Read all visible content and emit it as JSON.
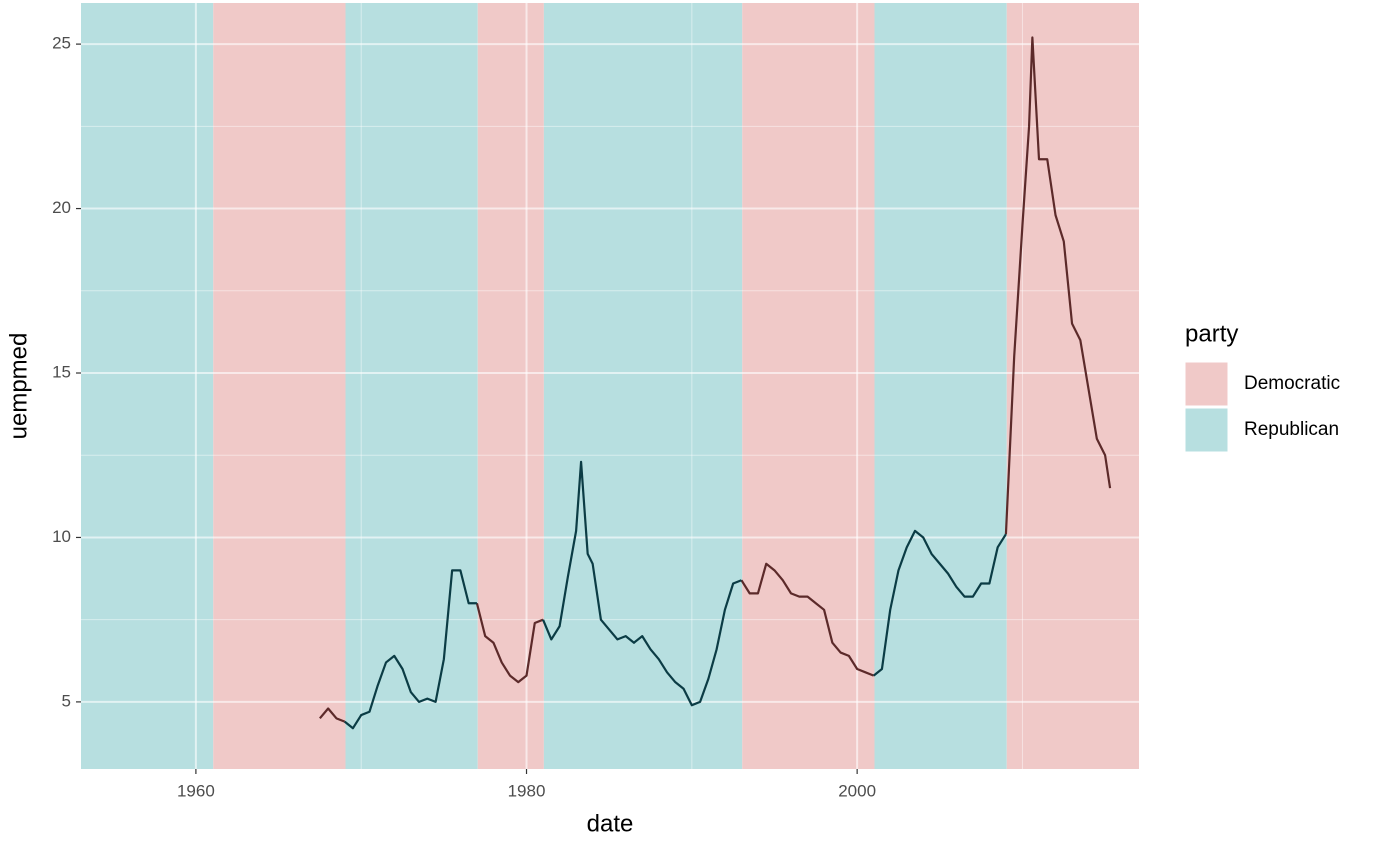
{
  "chart_data": {
    "type": "line",
    "x_label": "date",
    "y_label": "uempmed",
    "legend_title": "party",
    "xlim": [
      1953.05,
      2017.05
    ],
    "ylim": [
      2.96,
      26.25
    ],
    "xticks": [
      1960,
      1980,
      2000
    ],
    "yticks": [
      5,
      10,
      15,
      20,
      25
    ],
    "minor_xticks": [
      1970,
      1990,
      2010
    ],
    "minor_yticks": [
      7.5,
      12.5,
      17.5,
      22.5
    ],
    "grid": true,
    "legend": "right",
    "periods": [
      {
        "start": 1953.05,
        "end": 1961.05,
        "party": "Republican"
      },
      {
        "start": 1961.05,
        "end": 1969.05,
        "party": "Democratic"
      },
      {
        "start": 1969.05,
        "end": 1977.05,
        "party": "Republican"
      },
      {
        "start": 1977.05,
        "end": 1981.05,
        "party": "Democratic"
      },
      {
        "start": 1981.05,
        "end": 1993.05,
        "party": "Republican"
      },
      {
        "start": 1993.05,
        "end": 2001.05,
        "party": "Democratic"
      },
      {
        "start": 2001.05,
        "end": 2009.05,
        "party": "Republican"
      },
      {
        "start": 2009.05,
        "end": 2017.05,
        "party": "Democratic"
      }
    ],
    "x": [
      1967.5,
      1968.0,
      1968.5,
      1969.0,
      1969.5,
      1970.0,
      1970.5,
      1971.0,
      1971.5,
      1972.0,
      1972.5,
      1973.0,
      1973.5,
      1974.0,
      1974.5,
      1975.0,
      1975.5,
      1976.0,
      1976.5,
      1977.0,
      1977.5,
      1978.0,
      1978.5,
      1979.0,
      1979.5,
      1980.0,
      1980.5,
      1981.0,
      1981.5,
      1982.0,
      1982.5,
      1983.0,
      1983.3,
      1983.7,
      1984.0,
      1984.5,
      1985.0,
      1985.5,
      1986.0,
      1986.5,
      1987.0,
      1987.5,
      1988.0,
      1988.5,
      1989.0,
      1989.5,
      1990.0,
      1990.5,
      1991.0,
      1991.5,
      1992.0,
      1992.5,
      1993.0,
      1993.5,
      1994.0,
      1994.5,
      1995.0,
      1995.5,
      1996.0,
      1996.5,
      1997.0,
      1997.5,
      1998.0,
      1998.5,
      1999.0,
      1999.5,
      2000.0,
      2000.5,
      2001.0,
      2001.5,
      2002.0,
      2002.5,
      2003.0,
      2003.5,
      2004.0,
      2004.5,
      2005.0,
      2005.5,
      2006.0,
      2006.5,
      2007.0,
      2007.5,
      2008.0,
      2008.5,
      2009.0,
      2009.5,
      2010.0,
      2010.4,
      2010.6,
      2011.0,
      2011.5,
      2012.0,
      2012.5,
      2013.0,
      2013.5,
      2014.0,
      2014.5,
      2015.0,
      2015.3
    ],
    "series": [
      {
        "name": "Democratic",
        "color": "#f0c9c8",
        "line_color": "#5c2a2a",
        "values": [
          4.5,
          4.8,
          4.5,
          4.4,
          null,
          null,
          null,
          null,
          null,
          null,
          null,
          null,
          null,
          null,
          null,
          null,
          null,
          null,
          null,
          8.0,
          7.0,
          6.8,
          6.2,
          5.8,
          5.6,
          5.8,
          7.4,
          7.5,
          null,
          null,
          null,
          null,
          null,
          null,
          null,
          null,
          null,
          null,
          null,
          null,
          null,
          null,
          null,
          null,
          null,
          null,
          null,
          null,
          null,
          null,
          null,
          null,
          8.7,
          8.3,
          8.3,
          9.2,
          9.0,
          8.7,
          8.3,
          8.2,
          8.2,
          8.0,
          7.8,
          6.8,
          6.5,
          6.4,
          6.0,
          5.9,
          5.8,
          null,
          null,
          null,
          null,
          null,
          null,
          null,
          null,
          null,
          null,
          null,
          null,
          null,
          null,
          null,
          10.1,
          15.5,
          19.5,
          22.5,
          25.2,
          21.5,
          21.5,
          19.8,
          19.0,
          16.5,
          16.0,
          14.5,
          13.0,
          12.5,
          11.5
        ]
      },
      {
        "name": "Republican",
        "color": "#b7dfe0",
        "line_color": "#0b3c45",
        "values": [
          null,
          null,
          null,
          4.4,
          4.2,
          4.6,
          4.7,
          5.5,
          6.2,
          6.4,
          6.0,
          5.3,
          5.0,
          5.1,
          5.0,
          6.3,
          9.0,
          9.0,
          8.0,
          8.0,
          null,
          null,
          null,
          null,
          null,
          null,
          null,
          7.5,
          6.9,
          7.3,
          8.8,
          10.2,
          12.3,
          9.5,
          9.2,
          7.5,
          7.2,
          6.9,
          7.0,
          6.8,
          7.0,
          6.6,
          6.3,
          5.9,
          5.6,
          5.4,
          4.9,
          5.0,
          5.7,
          6.6,
          7.8,
          8.6,
          8.7,
          null,
          null,
          null,
          null,
          null,
          null,
          null,
          null,
          null,
          null,
          null,
          null,
          null,
          null,
          null,
          5.8,
          6.0,
          7.8,
          9.0,
          9.7,
          10.2,
          10.0,
          9.5,
          9.2,
          8.9,
          8.5,
          8.2,
          8.2,
          8.6,
          8.6,
          9.7,
          10.1,
          null,
          null,
          null,
          null,
          null,
          null,
          null,
          null,
          null,
          null,
          null,
          null,
          null,
          null
        ]
      }
    ]
  }
}
